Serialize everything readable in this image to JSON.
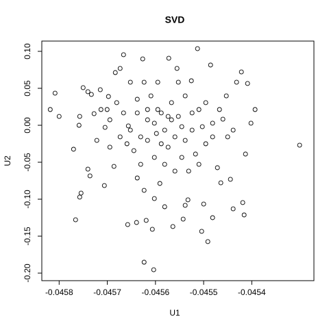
{
  "chart_data": {
    "type": "scatter",
    "title": "SVD",
    "xlabel": "U1",
    "ylabel": "U2",
    "color": "#000000",
    "xlim": [
      -0.045836,
      -0.045271
    ],
    "ylim": [
      -0.2102,
      0.1139
    ],
    "xticks": [
      -0.0458,
      -0.0457,
      -0.0456,
      -0.0455,
      -0.0454
    ],
    "yticks": [
      {
        "value": 0.1,
        "label": "0.10"
      },
      0.05,
      {
        "value": 0,
        "label": "0.00"
      },
      -0.05,
      {
        "value": -0.1,
        "label": "-0.10"
      },
      -0.15,
      {
        "value": -0.2,
        "label": "-0.20"
      }
    ],
    "x": [
      -0.0458185,
      -0.0458085,
      -0.0458,
      -0.0457701,
      -0.0457659,
      -0.0457573,
      -0.0457545,
      -0.0457573,
      -0.0457587,
      -0.0457502,
      -0.0457403,
      -0.0457331,
      -0.0457403,
      -0.045736,
      -0.0457275,
      -0.0457218,
      -0.0457146,
      -0.0457061,
      -0.0457047,
      -0.0457004,
      -0.0456976,
      -0.0456947,
      -0.0456862,
      -0.0456834,
      -0.0456734,
      -0.0456663,
      -0.0456577,
      -0.0456393,
      -0.0456265,
      -0.0456236,
      -0.0456193,
      -0.0456236,
      -0.0456037,
      -0.0456065,
      -0.0456023,
      -0.0455909,
      -0.0455809,
      -0.0455724,
      -0.0455639,
      -0.0455553,
      -0.0455425,
      -0.0455383,
      -0.0455326,
      -0.0455255,
      -0.0455127,
      -0.0455041,
      -0.0454999,
      -0.0454913,
      -0.0454856,
      -0.0454814,
      -0.0454714,
      -0.0454643,
      -0.04546,
      -0.0454501,
      -0.0454444,
      -0.0454387,
      -0.0454316,
      -0.0454216,
      -0.0454188,
      -0.0454159,
      -0.0454131,
      -0.0454088,
      -0.0454017,
      -0.0453932,
      -0.0453007,
      -0.0457132,
      -0.0456563,
      -0.0456378,
      -0.0456165,
      -0.0455952,
      -0.0455809,
      -0.0455667,
      -0.0455525,
      -0.0455383,
      -0.045524,
      -0.0455098,
      -0.0454956,
      -0.0454814,
      -0.0456094,
      -0.045588,
      -0.0455596,
      -0.0455454,
      -0.0456307,
      -0.0456449,
      -0.0456734,
      -0.0456663,
      -0.0455738,
      -0.0456023,
      -0.0456165,
      -0.0454956,
      -0.0454671,
      -0.0454529,
      -0.0455169,
      -0.0455311,
      -0.0456236,
      -0.0456521,
      -0.0455952,
      -0.0455525,
      -0.0455809,
      -0.0456307,
      -0.0456805,
      -0.0456947,
      -0.0456521,
      -0.0455667,
      -0.0455454,
      -0.045588,
      -0.045598,
      -0.045524,
      -0.0455027,
      -0.0456165,
      -0.0456378,
      -0.0455738,
      -0.0455383,
      -0.0456592,
      -0.0454814,
      -0.0454387,
      -0.0455596,
      -0.0456023,
      -0.0455098,
      -0.0456378
    ],
    "y": [
      0.0213,
      0.0435,
      0.012,
      -0.0324,
      -0.1278,
      -0.0972,
      -0.0917,
      0.012,
      0,
      0.0509,
      0.0454,
      0.0417,
      -0.0593,
      -0.0685,
      0.0157,
      -0.0204,
      0.0481,
      -0.0815,
      -0.0028,
      0.0213,
      0.0389,
      -0.0296,
      -0.0556,
      0.0713,
      0.0769,
      0.0954,
      -0.1343,
      -0.1315,
      0.0898,
      -0.088,
      -0.1287,
      -0.1852,
      -0.1954,
      -0.1407,
      -0.0991,
      -0.0787,
      -0.1102,
      0.0907,
      -0.137,
      0.0769,
      -0.1269,
      -0.1083,
      -0.1009,
      0.0602,
      0.1037,
      -0.1435,
      -0.1065,
      -0.1574,
      0.0815,
      -0.125,
      -0.0574,
      -0.0778,
      0.0083,
      -0.0157,
      -0.0731,
      -0.113,
      0.0583,
      0.0722,
      -0.1046,
      -0.1213,
      -0.0389,
      0.0565,
      0.0028,
      0.0213,
      -0.0269,
      0.0213,
      -0.0009,
      0.0167,
      0.0074,
      0.0213,
      -0.0065,
      0.0306,
      0.012,
      0.0398,
      -0.0065,
      0.0213,
      0.0306,
      0.0028,
      0.0398,
      -0.025,
      -0.0157,
      -0.0435,
      -0.0157,
      -0.0343,
      -0.0157,
      0.0167,
      0.012,
      0.0028,
      -0.0204,
      -0.025,
      0.0213,
      0.0398,
      -0.0389,
      -0.062,
      0.0583,
      0.0583,
      0.0583,
      0.0583,
      -0.0528,
      -0.0528,
      0.0306,
      0.0074,
      -0.0065,
      0.0074,
      -0.0019,
      0.0167,
      -0.0111,
      0.0167,
      -0.0019,
      0.0213,
      0.0352,
      -0.0296,
      -0.0204,
      -0.025,
      -0.0157,
      -0.0065,
      -0.062,
      -0.0435,
      -0.0528,
      -0.0713
    ]
  }
}
